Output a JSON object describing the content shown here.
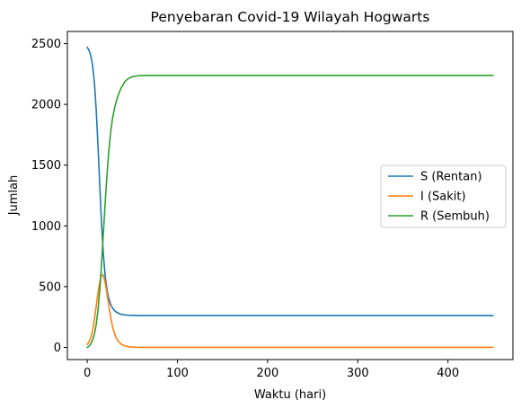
{
  "chart_data": {
    "type": "line",
    "title": "Penyebaran Covid-19 Wilayah Hogwarts",
    "xlabel": "Waktu (hari)",
    "ylabel": "Jumlah",
    "xlim": [
      -22,
      472
    ],
    "ylim": [
      -100,
      2600
    ],
    "xticks": [
      0,
      100,
      200,
      300,
      400
    ],
    "yticks": [
      0,
      500,
      1000,
      1500,
      2000,
      2500
    ],
    "legend_position": "center-right",
    "grid": false,
    "series": [
      {
        "name": "S (Rentan)",
        "color": "#1f77b4",
        "x": [
          0,
          2,
          4,
          6,
          8,
          10,
          12,
          14,
          16,
          18,
          20,
          22,
          24,
          26,
          28,
          30,
          32,
          35,
          38,
          42,
          46,
          50,
          55,
          60,
          70,
          80,
          100,
          150,
          200,
          300,
          400,
          450
        ],
        "y": [
          2470,
          2445,
          2400,
          2320,
          2180,
          1950,
          1650,
          1320,
          1000,
          760,
          580,
          470,
          400,
          355,
          325,
          305,
          292,
          280,
          272,
          267,
          265,
          264,
          263,
          262,
          262,
          262,
          262,
          262,
          262,
          262,
          262,
          262
        ]
      },
      {
        "name": "I (Sakit)",
        "color": "#ff7f0e",
        "x": [
          0,
          2,
          4,
          6,
          8,
          10,
          12,
          14,
          16,
          17,
          18,
          20,
          22,
          24,
          26,
          28,
          30,
          32,
          35,
          38,
          42,
          46,
          50,
          55,
          60,
          70,
          80,
          100,
          150,
          200,
          300,
          400,
          450
        ],
        "y": [
          25,
          45,
          80,
          140,
          230,
          340,
          450,
          545,
          595,
          600,
          590,
          530,
          440,
          340,
          250,
          175,
          120,
          80,
          45,
          25,
          12,
          6,
          3,
          1,
          0,
          0,
          0,
          0,
          0,
          0,
          0,
          0,
          0
        ]
      },
      {
        "name": "R (Sembuh)",
        "color": "#2ca02c",
        "x": [
          0,
          2,
          4,
          6,
          8,
          10,
          12,
          14,
          16,
          18,
          20,
          22,
          24,
          26,
          28,
          30,
          32,
          35,
          38,
          42,
          46,
          50,
          55,
          60,
          70,
          80,
          100,
          150,
          200,
          300,
          400,
          450
        ],
        "y": [
          0,
          10,
          30,
          60,
          110,
          190,
          310,
          480,
          700,
          950,
          1200,
          1430,
          1620,
          1770,
          1880,
          1960,
          2020,
          2090,
          2140,
          2190,
          2215,
          2228,
          2234,
          2237,
          2238,
          2238,
          2238,
          2238,
          2238,
          2238,
          2238,
          2238
        ]
      }
    ]
  }
}
